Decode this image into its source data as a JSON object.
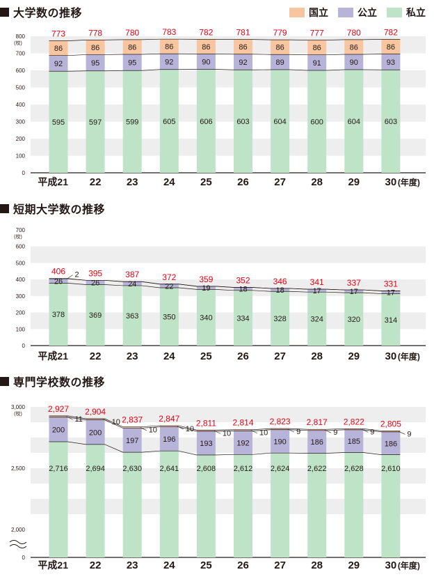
{
  "colors": {
    "national": "#f7c5a0",
    "public": "#b8b3d9",
    "private": "#bfe3c7",
    "total_label": "#e60012",
    "band": "#eeeeee",
    "text": "#231815"
  },
  "legend": {
    "items": [
      {
        "label": "国立",
        "color": "#f7c5a0"
      },
      {
        "label": "公立",
        "color": "#b8b3d9"
      },
      {
        "label": "私立",
        "color": "#bfe3c7"
      }
    ]
  },
  "chart_data": [
    {
      "type": "bar",
      "stacked": true,
      "title": "大学数の推移",
      "categories": [
        "平成21",
        "22",
        "23",
        "24",
        "25",
        "26",
        "27",
        "28",
        "29",
        "30"
      ],
      "x_suffix": "(年度)",
      "y_unit": "(校)",
      "ylim": [
        0,
        800
      ],
      "yticks": [
        0,
        100,
        200,
        300,
        400,
        500,
        600,
        700,
        800
      ],
      "series": [
        {
          "name": "私立",
          "key": "private",
          "values": [
            595,
            597,
            599,
            605,
            606,
            603,
            604,
            600,
            604,
            603
          ]
        },
        {
          "name": "公立",
          "key": "public",
          "values": [
            92,
            95,
            95,
            92,
            90,
            92,
            89,
            91,
            90,
            93
          ]
        },
        {
          "name": "国立",
          "key": "national",
          "values": [
            86,
            86,
            86,
            86,
            86,
            86,
            86,
            86,
            86,
            86
          ]
        }
      ],
      "totals": [
        "773",
        "778",
        "780",
        "783",
        "782",
        "781",
        "779",
        "777",
        "780",
        "782"
      ],
      "value_labels": [
        [
          "595",
          "597",
          "599",
          "605",
          "606",
          "603",
          "604",
          "600",
          "604",
          "603"
        ],
        [
          "92",
          "95",
          "95",
          "92",
          "90",
          "92",
          "89",
          "91",
          "90",
          "93"
        ],
        [
          "86",
          "86",
          "86",
          "86",
          "86",
          "86",
          "86",
          "86",
          "86",
          "86"
        ]
      ],
      "grid": "bands",
      "axis_break": false
    },
    {
      "type": "bar",
      "stacked": true,
      "title": "短期大学数の推移",
      "categories": [
        "平成21",
        "22",
        "23",
        "24",
        "25",
        "26",
        "27",
        "28",
        "29",
        "30"
      ],
      "x_suffix": "(年度)",
      "y_unit": "(校)",
      "ylim": [
        0,
        700
      ],
      "yticks": [
        0,
        100,
        200,
        300,
        400,
        500,
        600,
        700
      ],
      "series": [
        {
          "name": "私立",
          "key": "private",
          "values": [
            378,
            369,
            363,
            350,
            340,
            334,
            328,
            324,
            320,
            314
          ]
        },
        {
          "name": "公立",
          "key": "public",
          "values": [
            26,
            26,
            24,
            22,
            19,
            18,
            18,
            17,
            17,
            17
          ]
        },
        {
          "name": "国立",
          "key": "national",
          "values": [
            2,
            0,
            0,
            0,
            0,
            0,
            0,
            0,
            0,
            0
          ]
        }
      ],
      "totals": [
        "406",
        "395",
        "387",
        "372",
        "359",
        "352",
        "346",
        "341",
        "337",
        "331"
      ],
      "value_labels": [
        [
          "378",
          "369",
          "363",
          "350",
          "340",
          "334",
          "328",
          "324",
          "320",
          "314"
        ],
        [
          "26",
          "26",
          "24",
          "22",
          "19",
          "18",
          "18",
          "17",
          "17",
          "17"
        ],
        [
          "2",
          "",
          "",
          "",
          "",
          "",
          "",
          "",
          "",
          ""
        ]
      ],
      "grid": "bands",
      "axis_break": false
    },
    {
      "type": "bar",
      "stacked": true,
      "title": "専門学校数の推移",
      "categories": [
        "平成21",
        "22",
        "23",
        "24",
        "25",
        "26",
        "27",
        "28",
        "29",
        "30"
      ],
      "x_suffix": "(年度)",
      "y_unit": "(校)",
      "ylim": [
        1950,
        3000
      ],
      "yticks": [
        2000,
        2500,
        3000
      ],
      "ytick_labels": [
        "2,000",
        "2,500",
        "3,000"
      ],
      "zero_label": "0",
      "series": [
        {
          "name": "私立",
          "key": "private",
          "values": [
            2716,
            2694,
            2630,
            2641,
            2608,
            2612,
            2624,
            2622,
            2628,
            2610
          ]
        },
        {
          "name": "公立",
          "key": "public",
          "values": [
            200,
            200,
            197,
            196,
            193,
            192,
            190,
            186,
            185,
            186
          ]
        },
        {
          "name": "国立",
          "key": "national",
          "values": [
            11,
            10,
            10,
            10,
            10,
            10,
            9,
            9,
            9,
            9
          ]
        }
      ],
      "totals": [
        "2,927",
        "2,904",
        "2,837",
        "2,847",
        "2,811",
        "2,814",
        "2,823",
        "2,817",
        "2,822",
        "2,805"
      ],
      "value_labels": [
        [
          "2,716",
          "2,694",
          "2,630",
          "2,641",
          "2,608",
          "2,612",
          "2,624",
          "2,622",
          "2,628",
          "2,610"
        ],
        [
          "200",
          "200",
          "197",
          "196",
          "193",
          "192",
          "190",
          "186",
          "185",
          "186"
        ],
        [
          "11",
          "10",
          "10",
          "10",
          "10",
          "10",
          "9",
          "9",
          "9",
          "9"
        ]
      ],
      "grid": "bands",
      "axis_break": true
    }
  ]
}
